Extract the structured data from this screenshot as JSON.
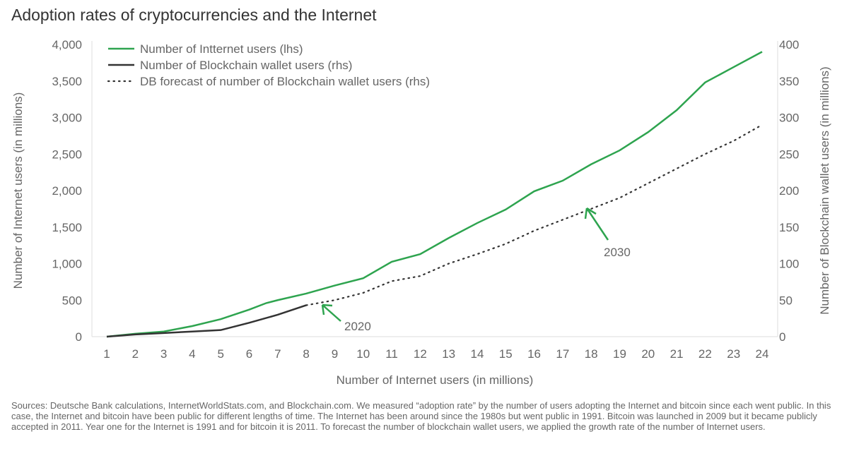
{
  "chart_data": {
    "type": "line",
    "title": "Adoption rates of cryptocurrencies and the Internet",
    "xlabel": "Number of Internet users (in millions)",
    "ylabel_left": "Number of Internet users (in millions)",
    "ylabel_right": "Number of Blockchain wallet users (in millions)",
    "x": [
      1,
      2,
      3,
      4,
      5,
      6,
      7,
      8,
      9,
      10,
      11,
      12,
      13,
      14,
      15,
      16,
      17,
      18,
      19,
      20,
      21,
      22,
      23,
      24
    ],
    "ylim_left": [
      0,
      4000
    ],
    "yticks_left": [
      "0",
      "500",
      "1,000",
      "1,500",
      "2,000",
      "2,500",
      "3,000",
      "3,500",
      "4,000"
    ],
    "ylim_right": [
      0,
      400
    ],
    "yticks_right": [
      "0",
      "50",
      "100",
      "150",
      "200",
      "250",
      "300",
      "350",
      "400"
    ],
    "grid": false,
    "legend": "top-left",
    "series": [
      {
        "name": "Number of Intternet users (lhs)",
        "axis": "left",
        "style": "solid",
        "color": "#2ea44f",
        "x": [
          1,
          2,
          3,
          4,
          5,
          6,
          6.6,
          7,
          8,
          9,
          10,
          11,
          12,
          13,
          14,
          15,
          16,
          17,
          18,
          19,
          20,
          21,
          22,
          23,
          24
        ],
        "values": [
          0,
          40,
          70,
          145,
          240,
          370,
          460,
          500,
          590,
          700,
          800,
          1025,
          1130,
          1350,
          1555,
          1740,
          1990,
          2135,
          2360,
          2550,
          2800,
          3100,
          3480,
          3690,
          3900
        ]
      },
      {
        "name": "Number of Blockchain wallet users (rhs)",
        "axis": "right",
        "style": "solid",
        "color": "#333333",
        "x": [
          1,
          2,
          3,
          4,
          5,
          6,
          7,
          8
        ],
        "values": [
          0,
          3,
          5,
          7,
          9,
          19,
          30,
          43
        ]
      },
      {
        "name": "DB forecast of number of Blockchain wallet users (rhs)",
        "axis": "right",
        "style": "dotted",
        "color": "#333333",
        "x": [
          8,
          9,
          10,
          11,
          12,
          13,
          14,
          15,
          16,
          17,
          18,
          19,
          20,
          21,
          22,
          23,
          24
        ],
        "values": [
          43,
          50,
          60,
          76,
          83,
          100,
          113,
          127,
          145,
          160,
          175,
          190,
          210,
          230,
          250,
          268,
          290
        ]
      }
    ],
    "annotations": [
      {
        "text": "2020",
        "x": 8.5,
        "y_right": 43
      },
      {
        "text": "2030",
        "x": 17.8,
        "y_right": 175
      }
    ]
  },
  "footnote": "Sources: Deutsche Bank calculations, InternetWorldStats.com, and Blockchain.com. We measured “adoption rate” by the number of users adopting the Internet and bitcoin since each went public. In this case, the Internet and bitcoin have been public for different lengths of time. The Internet has been around since the 1980s but went public in 1991. Bitcoin was launched in 2009 but it became publicly accepted in 2011. Year one for the Internet is 1991 and for bitcoin it is 2011. To forecast the number of blockchain wallet users, we applied the growth rate of the number of Internet users."
}
